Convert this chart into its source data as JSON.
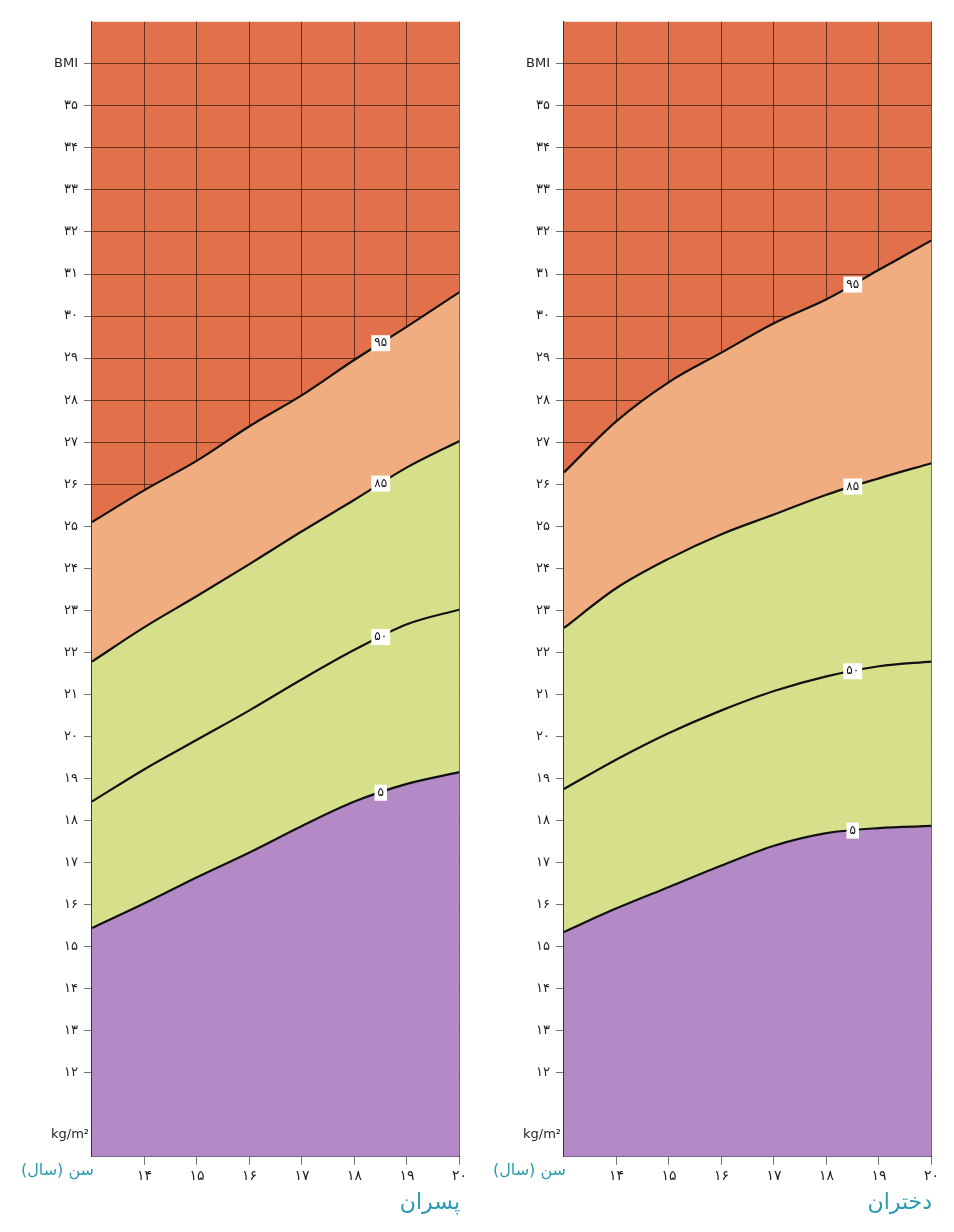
{
  "chart_data": [
    {
      "type": "area",
      "title": "پسران",
      "xlabel": "سن (سال)",
      "ylabel": "kg/m²",
      "bands": [
        {
          "axis": "y",
          "from": 10,
          "to": 37,
          "color": "#e2704a"
        }
      ],
      "x": [
        13,
        14,
        15,
        16,
        17,
        18,
        19,
        20
      ],
      "xlim": [
        13,
        20
      ],
      "xticks": [
        {
          "value": 14,
          "label": "۱۴"
        },
        {
          "value": 15,
          "label": "۱۵"
        },
        {
          "value": 16,
          "label": "۱۶"
        },
        {
          "value": 17,
          "label": "۱۷"
        },
        {
          "value": 18,
          "label": "۱۸"
        },
        {
          "value": 19,
          "label": "۱۹"
        },
        {
          "value": 20,
          "label": "۲۰"
        }
      ],
      "ylim": [
        10,
        37
      ],
      "yticks": [
        {
          "value": 12,
          "label": "۱۲"
        },
        {
          "value": 13,
          "label": "۱۳"
        },
        {
          "value": 14,
          "label": "۱۴"
        },
        {
          "value": 15,
          "label": "۱۵"
        },
        {
          "value": 16,
          "label": "۱۶"
        },
        {
          "value": 17,
          "label": "۱۷"
        },
        {
          "value": 18,
          "label": "۱۸"
        },
        {
          "value": 19,
          "label": "۱۹"
        },
        {
          "value": 20,
          "label": "۲۰"
        },
        {
          "value": 21,
          "label": "۲۱"
        },
        {
          "value": 22,
          "label": "۲۲"
        },
        {
          "value": 23,
          "label": "۲۳"
        },
        {
          "value": 24,
          "label": "۲۴"
        },
        {
          "value": 25,
          "label": "۲۵"
        },
        {
          "value": 26,
          "label": "۲۶"
        },
        {
          "value": 27,
          "label": "۲۷"
        },
        {
          "value": 28,
          "label": "۲۸"
        },
        {
          "value": 29,
          "label": "۲۹"
        },
        {
          "value": 30,
          "label": "۳۰"
        },
        {
          "value": 31,
          "label": "۳۱"
        },
        {
          "value": 32,
          "label": "۳۲"
        },
        {
          "value": 33,
          "label": "۳۳"
        },
        {
          "value": 34,
          "label": "۳۴"
        },
        {
          "value": 35,
          "label": "۳۵"
        },
        {
          "value": 36,
          "label": "BMI"
        }
      ],
      "grid": true,
      "legend": false,
      "marker": "none",
      "series": [
        {
          "name": "۵",
          "color": "#b48ac6",
          "values": [
            15.44,
            16.03,
            16.65,
            17.24,
            17.87,
            18.45,
            18.87,
            19.15
          ]
        },
        {
          "name": "۵۰",
          "color": "#d6e08a",
          "values": [
            18.45,
            19.22,
            19.92,
            20.62,
            21.36,
            22.06,
            22.67,
            23.02
          ]
        },
        {
          "name": "۸۵",
          "color": "#d6e08a",
          "values": [
            21.78,
            22.6,
            23.34,
            24.1,
            24.88,
            25.63,
            26.4,
            27.03
          ]
        },
        {
          "name": "۹۵",
          "color": "#f0ae80",
          "values": [
            25.1,
            25.86,
            26.56,
            27.38,
            28.12,
            28.96,
            29.75,
            30.57
          ]
        }
      ]
    },
    {
      "type": "area",
      "title": "دختران",
      "xlabel": "سن (سال)",
      "ylabel": "kg/m²",
      "bands": [
        {
          "axis": "y",
          "from": 10,
          "to": 37,
          "color": "#e2704a"
        }
      ],
      "x": [
        13,
        14,
        15,
        16,
        17,
        18,
        19,
        20
      ],
      "xlim": [
        13,
        20
      ],
      "xticks": [
        {
          "value": 14,
          "label": "۱۴"
        },
        {
          "value": 15,
          "label": "۱۵"
        },
        {
          "value": 16,
          "label": "۱۶"
        },
        {
          "value": 17,
          "label": "۱۷"
        },
        {
          "value": 18,
          "label": "۱۸"
        },
        {
          "value": 19,
          "label": "۱۹"
        },
        {
          "value": 20,
          "label": "۲۰"
        }
      ],
      "ylim": [
        10,
        37
      ],
      "yticks": [
        {
          "value": 12,
          "label": "۱۲"
        },
        {
          "value": 13,
          "label": "۱۳"
        },
        {
          "value": 14,
          "label": "۱۴"
        },
        {
          "value": 15,
          "label": "۱۵"
        },
        {
          "value": 16,
          "label": "۱۶"
        },
        {
          "value": 17,
          "label": "۱۷"
        },
        {
          "value": 18,
          "label": "۱۸"
        },
        {
          "value": 19,
          "label": "۱۹"
        },
        {
          "value": 20,
          "label": "۲۰"
        },
        {
          "value": 21,
          "label": "۲۱"
        },
        {
          "value": 22,
          "label": "۲۲"
        },
        {
          "value": 23,
          "label": "۲۳"
        },
        {
          "value": 24,
          "label": "۲۴"
        },
        {
          "value": 25,
          "label": "۲۵"
        },
        {
          "value": 26,
          "label": "۲۶"
        },
        {
          "value": 27,
          "label": "۲۷"
        },
        {
          "value": 28,
          "label": "۲۸"
        },
        {
          "value": 29,
          "label": "۲۹"
        },
        {
          "value": 30,
          "label": "۳۰"
        },
        {
          "value": 31,
          "label": "۳۱"
        },
        {
          "value": 32,
          "label": "۳۲"
        },
        {
          "value": 33,
          "label": "۳۳"
        },
        {
          "value": 34,
          "label": "۳۴"
        },
        {
          "value": 35,
          "label": "۳۵"
        },
        {
          "value": 36,
          "label": "BMI"
        }
      ],
      "grid": true,
      "legend": false,
      "marker": "none",
      "series": [
        {
          "name": "۵",
          "color": "#b48ac6",
          "values": [
            15.35,
            15.91,
            16.42,
            16.93,
            17.4,
            17.7,
            17.82,
            17.87
          ]
        },
        {
          "name": "۵۰",
          "color": "#d6e08a",
          "values": [
            18.75,
            19.45,
            20.08,
            20.62,
            21.08,
            21.43,
            21.67,
            21.78
          ]
        },
        {
          "name": "۸۵",
          "color": "#d6e08a",
          "values": [
            22.58,
            23.53,
            24.23,
            24.81,
            25.28,
            25.75,
            26.14,
            26.5
          ]
        },
        {
          "name": "۹۵",
          "color": "#f0ae80",
          "values": [
            26.28,
            27.5,
            28.43,
            29.13,
            29.83,
            30.4,
            31.1,
            31.8
          ]
        }
      ]
    }
  ]
}
